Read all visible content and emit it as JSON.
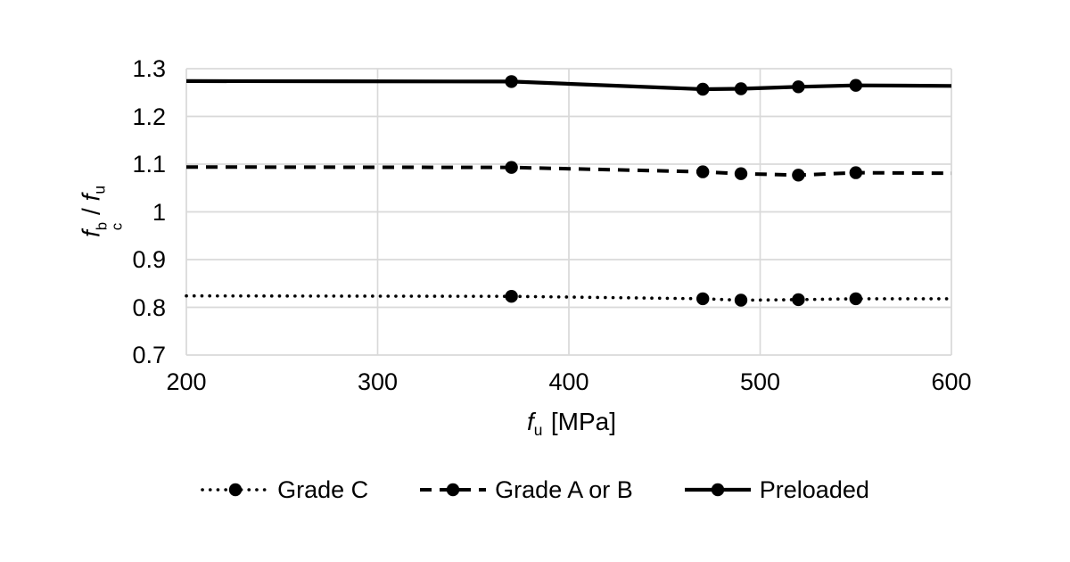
{
  "chart_data": {
    "type": "line",
    "title": "",
    "xlabel": "f_u [MPa]",
    "ylabel": "f_c^b / f_u",
    "xlabel_parts": {
      "symbol": "f",
      "subscript": "u",
      "unit": "[MPa]"
    },
    "ylabel_parts": {
      "symbol1": "f",
      "superscript1": "b",
      "subscript1": "c",
      "separator": "/",
      "symbol2": "f",
      "subscript2": "u"
    },
    "xlim": [
      200,
      600
    ],
    "ylim": [
      0.7,
      1.3
    ],
    "x_ticks": [
      "200",
      "300",
      "400",
      "500",
      "600"
    ],
    "y_ticks": [
      "1.3",
      "1.2",
      "1.1",
      "1",
      "0.9",
      "0.8",
      "0.7"
    ],
    "grid": true,
    "legend_position": "bottom",
    "x": [
      200,
      370,
      470,
      490,
      520,
      550,
      600
    ],
    "marker_x": [
      370,
      470,
      490,
      520,
      550
    ],
    "series": [
      {
        "name": "Grade C",
        "style": "dotted",
        "values": [
          0.824,
          0.823,
          0.818,
          0.815,
          0.816,
          0.818,
          0.818
        ]
      },
      {
        "name": "Grade A or B",
        "style": "dashed",
        "values": [
          1.094,
          1.093,
          1.084,
          1.08,
          1.077,
          1.082,
          1.081
        ]
      },
      {
        "name": "Preloaded",
        "style": "solid",
        "values": [
          1.274,
          1.273,
          1.257,
          1.258,
          1.262,
          1.265,
          1.264
        ]
      }
    ],
    "colors": {
      "series": "#000000",
      "gridline": "#d9d9d9",
      "background": "#ffffff",
      "text": "#000000"
    }
  }
}
